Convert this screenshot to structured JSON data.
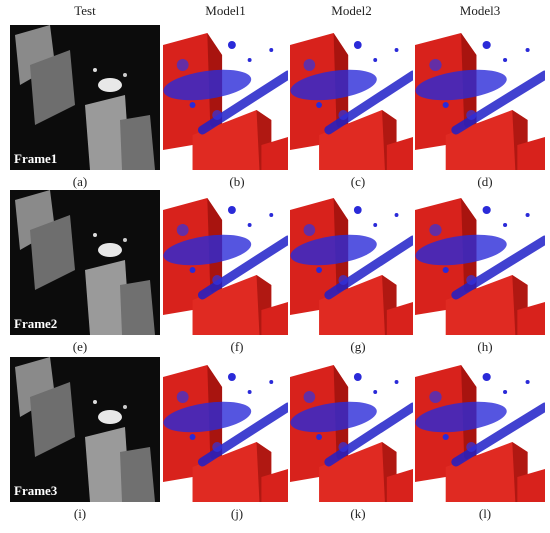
{
  "columns": [
    "Test",
    "Model1",
    "Model2",
    "Model3"
  ],
  "rows": [
    {
      "frame": "Frame1",
      "captions": [
        "(a)",
        "(b)",
        "(c)",
        "(d)"
      ]
    },
    {
      "frame": "Frame2",
      "captions": [
        "(e)",
        "(f)",
        "(g)",
        "(h)"
      ]
    },
    {
      "frame": "Frame3",
      "captions": [
        "(i)",
        "(j)",
        "(k)",
        "(l)"
      ]
    }
  ]
}
